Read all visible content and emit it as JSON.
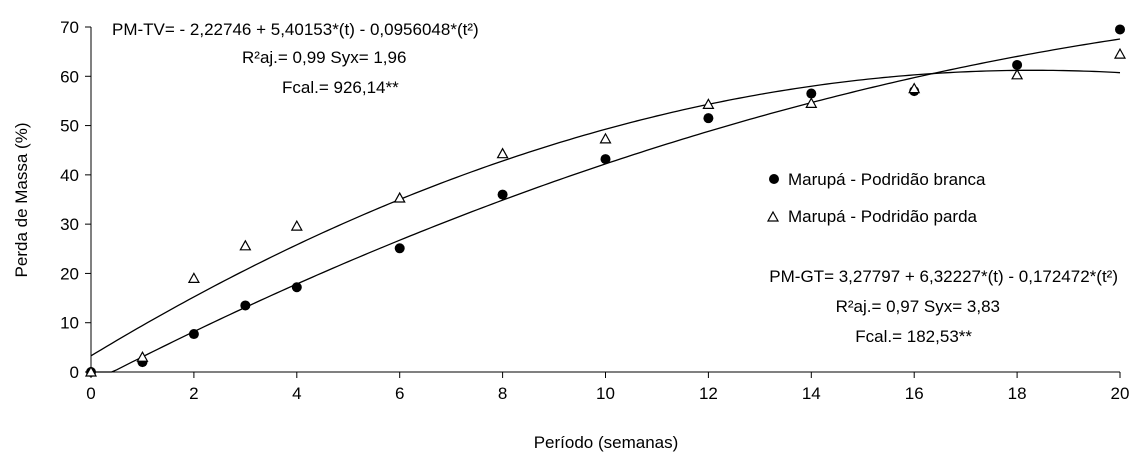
{
  "chart_data": {
    "type": "scatter",
    "xlabel": "Período (semanas)",
    "ylabel": "Perda de Massa (%)",
    "xlim": [
      0,
      20
    ],
    "ylim": [
      0,
      70
    ],
    "xticks": [
      "0",
      "2",
      "4",
      "6",
      "8",
      "10",
      "12",
      "14",
      "16",
      "18",
      "20"
    ],
    "yticks": [
      "0",
      "10",
      "20",
      "30",
      "40",
      "50",
      "60",
      "70"
    ],
    "grid": false,
    "legend_position": "right",
    "series": [
      {
        "name": "Marupá - Podridão branca",
        "marker": "filled-circle",
        "x": [
          0,
          1,
          2,
          3,
          4,
          6,
          8,
          10,
          12,
          14,
          16,
          18,
          20
        ],
        "y": [
          0,
          2,
          7.7,
          13.5,
          17.2,
          25.1,
          36,
          43.2,
          51.5,
          56.5,
          57,
          62.3,
          69.5
        ]
      },
      {
        "name": "Marupá - Podridão parda",
        "marker": "open-triangle",
        "x": [
          0,
          1,
          2,
          3,
          4,
          6,
          8,
          10,
          12,
          14,
          16,
          18,
          20
        ],
        "y": [
          0,
          3,
          19,
          25.6,
          29.6,
          35.3,
          44.3,
          47.3,
          54.3,
          54.5,
          57.5,
          60.3,
          64.5
        ]
      }
    ],
    "fits": [
      {
        "a": -2.22746,
        "b": 5.40153,
        "c": -0.0956048
      },
      {
        "a": 3.27797,
        "b": 6.32227,
        "c": -0.172472
      }
    ],
    "annotations": {
      "tv": [
        "PM-TV= - 2,22746 + 5,40153*(t) - 0,0956048*(t²)",
        "R²aj.= 0,99  Syx= 1,96",
        "Fcal.= 926,14**"
      ],
      "gt": [
        "PM-GT= 3,27797 + 6,32227*(t) - 0,172472*(t²)",
        "R²aj.= 0,97  Syx= 3,83",
        "Fcal.= 182,53**"
      ]
    }
  }
}
